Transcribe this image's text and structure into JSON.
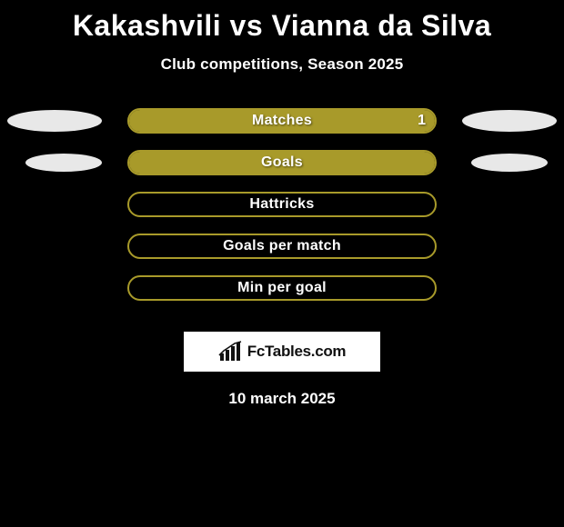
{
  "title": "Kakashvili vs Vianna da Silva",
  "subtitle": "Club competitions, Season 2025",
  "footer_date": "10 march 2025",
  "logo_text": "FcTables.com",
  "colors": {
    "background": "#000000",
    "text": "#ffffff",
    "bar_border": "#a89a2a",
    "bar_fill_left": "#438aa8",
    "bar_fill_right": "#a89a2a",
    "ellipse": "#e8e8e8",
    "logo_bg": "#ffffff",
    "logo_text": "#111111"
  },
  "stats": [
    {
      "label": "Matches",
      "left_value": "",
      "right_value": "1",
      "left_pct": 0,
      "right_pct": 100,
      "show_ellipses": true,
      "ellipse_size": "normal"
    },
    {
      "label": "Goals",
      "left_value": "",
      "right_value": "",
      "left_pct": 0,
      "right_pct": 100,
      "show_ellipses": true,
      "ellipse_size": "small"
    },
    {
      "label": "Hattricks",
      "left_value": "",
      "right_value": "",
      "left_pct": 0,
      "right_pct": 0,
      "show_ellipses": false
    },
    {
      "label": "Goals per match",
      "left_value": "",
      "right_value": "",
      "left_pct": 0,
      "right_pct": 0,
      "show_ellipses": false
    },
    {
      "label": "Min per goal",
      "left_value": "",
      "right_value": "",
      "left_pct": 0,
      "right_pct": 0,
      "show_ellipses": false
    }
  ]
}
